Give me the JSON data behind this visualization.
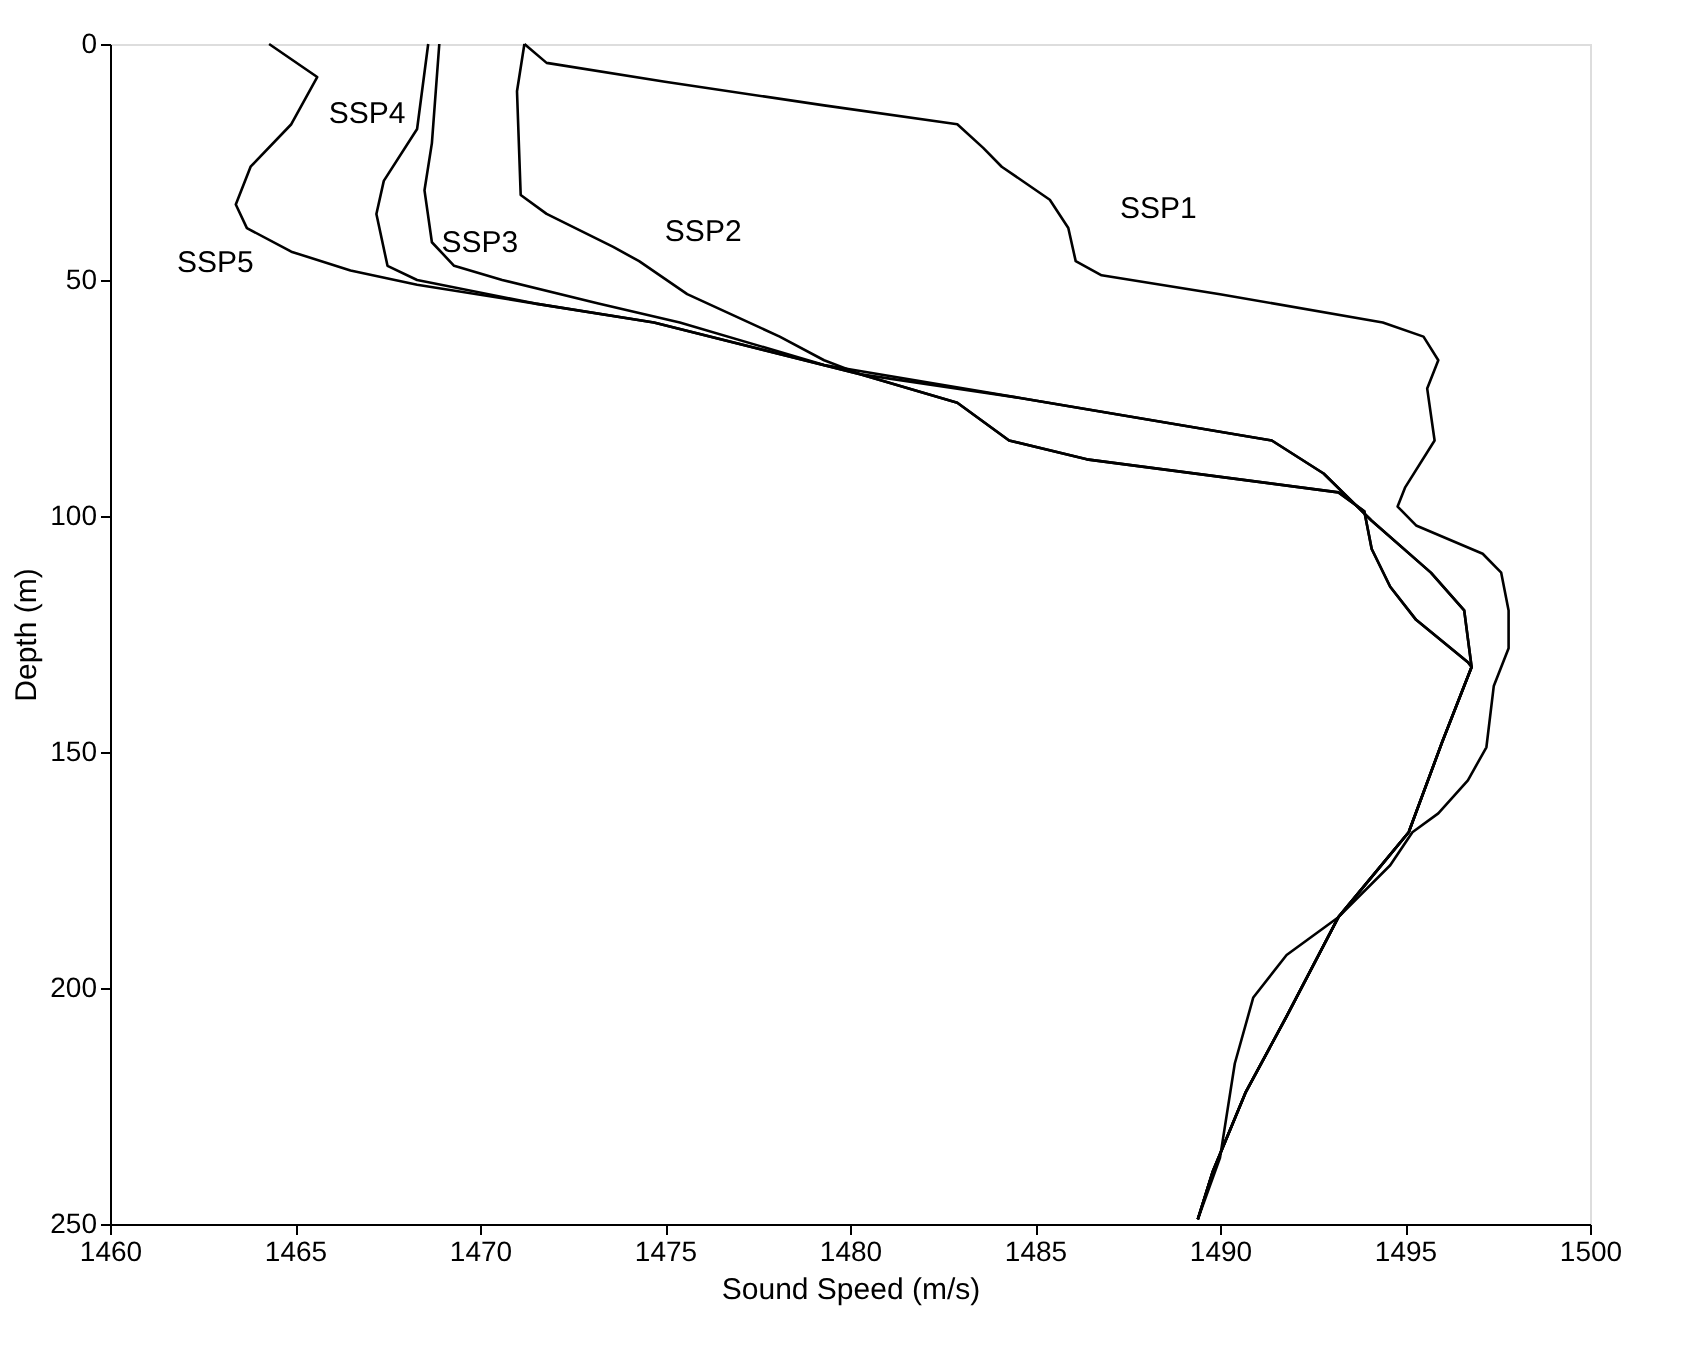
{
  "chart_data": {
    "type": "line",
    "xlabel": "Sound Speed (m/s)",
    "ylabel": "Depth (m)",
    "xlim": [
      1460,
      1500
    ],
    "xticks": [
      1460,
      1465,
      1470,
      1475,
      1480,
      1485,
      1490,
      1495,
      1500
    ],
    "ylim": [
      250,
      0
    ],
    "yticks": [
      0,
      50,
      100,
      150,
      200,
      250
    ],
    "grid": false,
    "legend": false,
    "line_style": "solid",
    "marker": "none",
    "series": [
      {
        "name": "SSP1",
        "color": "#000000",
        "x": [
          1471.2,
          1471.8,
          1475.0,
          1479.3,
          1482.9,
          1483.6,
          1484.1,
          1485.4,
          1485.9,
          1486.1,
          1486.8,
          1490.0,
          1494.4,
          1495.5,
          1495.9,
          1495.6,
          1495.8,
          1495.0,
          1494.8,
          1495.3,
          1497.1,
          1497.6,
          1497.8,
          1497.8,
          1497.4,
          1497.2,
          1496.7,
          1495.9,
          1495.2,
          1494.6,
          1493.2,
          1491.8,
          1490.9,
          1490.4,
          1490.0,
          1489.4
        ],
        "values": [
          0,
          4,
          8,
          13,
          17,
          22,
          26,
          33,
          39,
          46,
          49,
          53,
          59,
          62,
          67,
          73,
          84,
          94,
          98,
          102,
          108,
          112,
          120,
          128,
          136,
          149,
          156,
          163,
          167,
          174,
          185,
          193,
          202,
          216,
          236,
          249
        ]
      },
      {
        "name": "SSP2",
        "color": "#000000",
        "x": [
          1471.2,
          1471.0,
          1471.1,
          1471.8,
          1473.6,
          1474.3,
          1475.6,
          1478.1,
          1479.3,
          1480.3,
          1482.9,
          1484.3,
          1486.4,
          1493.2,
          1493.9,
          1494.1,
          1494.6,
          1495.3,
          1496.7,
          1496.8,
          1496.0,
          1495.1,
          1493.2,
          1491.8,
          1490.7,
          1489.8,
          1489.4
        ],
        "values": [
          0,
          10,
          32,
          36,
          43,
          46,
          53,
          62,
          67,
          70,
          76,
          84,
          88,
          95,
          99,
          107,
          115,
          122,
          131,
          132,
          148,
          167,
          185,
          206,
          222,
          239,
          249
        ]
      },
      {
        "name": "SSP3",
        "color": "#000000",
        "x": [
          1468.9,
          1468.7,
          1468.5,
          1468.7,
          1469.3,
          1470.6,
          1473.2,
          1475.4,
          1479.3,
          1484.6,
          1491.4,
          1492.8,
          1494.1,
          1495.7,
          1496.6,
          1496.8,
          1496.0,
          1495.1,
          1493.2,
          1491.8,
          1490.7,
          1489.8,
          1489.4
        ],
        "values": [
          0,
          21,
          31,
          42,
          47,
          50,
          55,
          59,
          68,
          75,
          84,
          91,
          101,
          112,
          120,
          132,
          148,
          167,
          185,
          206,
          222,
          239,
          249
        ]
      },
      {
        "name": "SSP4",
        "color": "#000000",
        "x": [
          1468.6,
          1468.3,
          1467.4,
          1467.2,
          1467.5,
          1468.3,
          1471.5,
          1474.7,
          1480.3,
          1484.6,
          1491.4,
          1492.8,
          1494.1,
          1495.7,
          1496.6,
          1496.8,
          1496.0,
          1495.1,
          1493.2,
          1491.8,
          1490.7,
          1489.8,
          1489.4
        ],
        "values": [
          0,
          18,
          29,
          36,
          47,
          50,
          55,
          59,
          70,
          75,
          84,
          91,
          101,
          112,
          120,
          132,
          148,
          167,
          185,
          206,
          222,
          239,
          249
        ]
      },
      {
        "name": "SSP5",
        "color": "#000000",
        "x": [
          1464.3,
          1465.6,
          1464.9,
          1463.8,
          1463.4,
          1463.7,
          1464.9,
          1466.5,
          1468.3,
          1471.5,
          1474.7,
          1480.3,
          1482.9,
          1484.3,
          1486.4,
          1493.2,
          1493.9,
          1494.1,
          1494.6,
          1495.3,
          1496.7,
          1496.8,
          1496.0,
          1495.1,
          1493.2,
          1491.8,
          1490.7,
          1489.8,
          1489.4
        ],
        "values": [
          0,
          7,
          17,
          26,
          34,
          39,
          44,
          48,
          51,
          55,
          59,
          70,
          76,
          84,
          88,
          95,
          99,
          107,
          115,
          122,
          131,
          132,
          148,
          167,
          185,
          206,
          222,
          239,
          249
        ]
      }
    ]
  }
}
